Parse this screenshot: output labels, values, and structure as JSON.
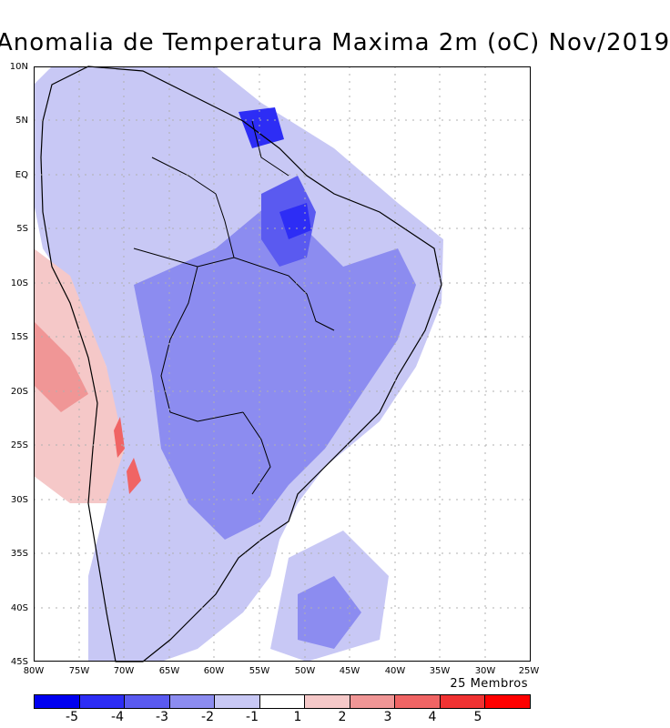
{
  "title": "Anomalia de Temperatura Maxima 2m (oC) Nov/2019",
  "members": "25 Membros",
  "lat_labels": [
    "10N",
    "5N",
    "EQ",
    "5S",
    "10S",
    "15S",
    "20S",
    "25S",
    "30S",
    "35S",
    "40S",
    "45S"
  ],
  "lon_labels": [
    "80W",
    "75W",
    "70W",
    "65W",
    "60W",
    "55W",
    "50W",
    "45W",
    "40W",
    "35W",
    "30W",
    "25W"
  ],
  "legend": {
    "colors": [
      "#0000f0",
      "#2d2df5",
      "#5a5af0",
      "#8c8cf0",
      "#c8c8f5",
      "#ffffff",
      "#f5c8c8",
      "#f09696",
      "#f06464",
      "#f03232",
      "#ff0000"
    ],
    "labels": [
      "-5",
      "-4",
      "-3",
      "-2",
      "-1",
      "1",
      "2",
      "3",
      "4",
      "5"
    ]
  }
}
